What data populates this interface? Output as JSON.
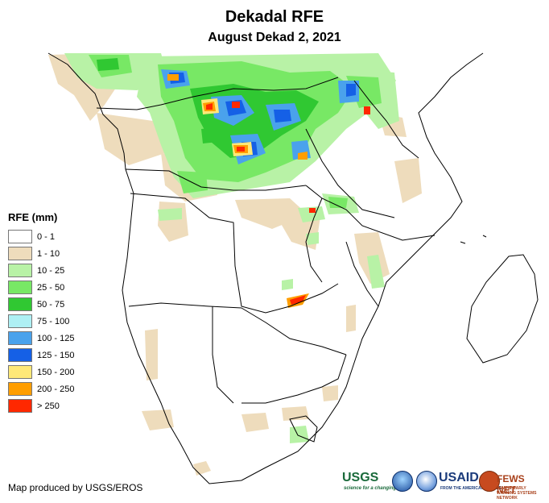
{
  "title": "Dekadal RFE",
  "subtitle": "August Dekad 2, 2021",
  "legend": {
    "title": "RFE (mm)",
    "items": [
      {
        "label": "0 - 1",
        "color": "#ffffff"
      },
      {
        "label": "1 - 10",
        "color": "#eedcbc"
      },
      {
        "label": "10 - 25",
        "color": "#b8f2a6"
      },
      {
        "label": "25 - 50",
        "color": "#78e865"
      },
      {
        "label": "50 - 75",
        "color": "#30c832"
      },
      {
        "label": "75 - 100",
        "color": "#aef0f4"
      },
      {
        "label": "100 - 125",
        "color": "#4aa2ec"
      },
      {
        "label": "125 - 150",
        "color": "#1560e6"
      },
      {
        "label": "150 - 200",
        "color": "#ffe878"
      },
      {
        "label": "200 - 250",
        "color": "#ff9e00"
      },
      {
        "label": "> 250",
        "color": "#ff2800"
      }
    ]
  },
  "credit": "Map produced by USGS/EROS",
  "logos": {
    "usgs": "USGS",
    "usgs_tagline": "science for a changing world",
    "usaid": "USAID",
    "usaid_tagline": "FROM THE AMERICAN PEOPLE",
    "fews": "FEWS NET",
    "fews_tagline": "FAMINE EARLY WARNING SYSTEMS NETWORK",
    "noaa_icon": "noaa-emblem",
    "nasa_icon": "nasa-emblem"
  }
}
